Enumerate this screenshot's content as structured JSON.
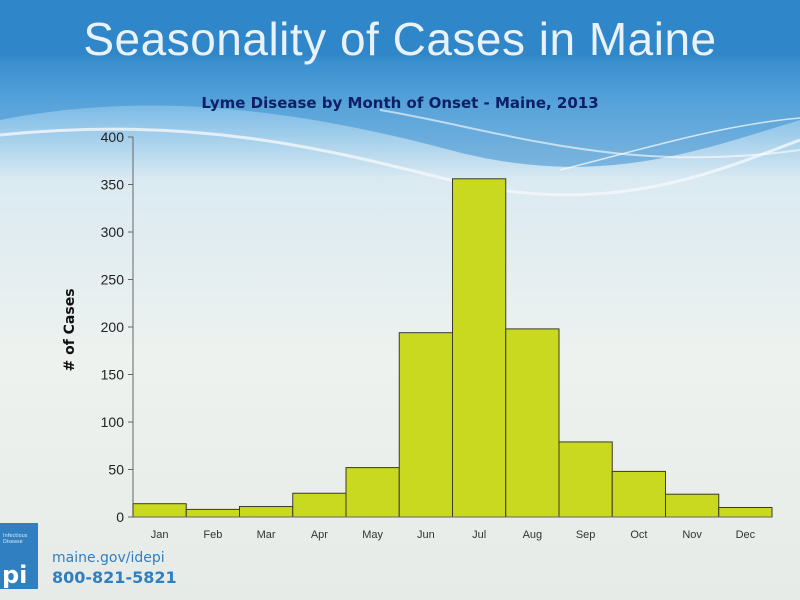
{
  "slide": {
    "title": "Seasonality of Cases in Maine",
    "footer": {
      "logo_text": "pi",
      "logo_small": "Infectious Disease",
      "site": "maine.gov/idepi",
      "phone": "800-821-5821"
    }
  },
  "chart_data": {
    "type": "bar",
    "title": "Lyme Disease by Month of Onset - Maine, 2013",
    "xlabel": "",
    "ylabel": "# of Cases",
    "categories": [
      "Jan",
      "Feb",
      "Mar",
      "Apr",
      "May",
      "Jun",
      "Jul",
      "Aug",
      "Sep",
      "Oct",
      "Nov",
      "Dec"
    ],
    "values": [
      14,
      8,
      11,
      25,
      52,
      194,
      356,
      198,
      79,
      48,
      24,
      10
    ],
    "yticks": [
      "0",
      "50",
      "100",
      "150",
      "200",
      "250",
      "300",
      "350",
      "400"
    ],
    "ylim": [
      0,
      400
    ],
    "bar_color": "#c8d91f",
    "bar_edge_color": "#3a3a2a",
    "grid": false,
    "legend": "none"
  }
}
